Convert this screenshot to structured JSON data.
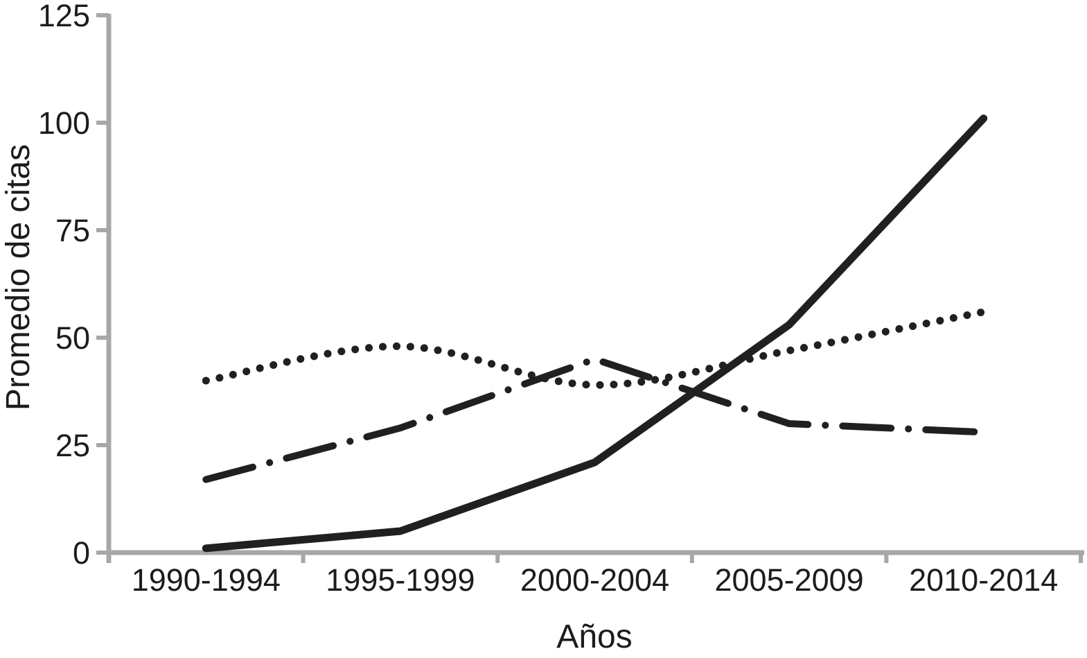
{
  "figure": {
    "background_color": "#ffffff",
    "axis_color": "#a7a7a7",
    "line_color": "#221f1f",
    "text_color": "#1c1c1c"
  },
  "chart_data": {
    "type": "line",
    "title": "",
    "xlabel": "Años",
    "ylabel": "Promedio de citas",
    "categories": [
      "1990-1994",
      "1995-1999",
      "2000-2004",
      "2005-2009",
      "2010-2014"
    ],
    "yticks": [
      0,
      25,
      50,
      75,
      100,
      125
    ],
    "ylim": [
      0,
      125
    ],
    "grid": false,
    "legend_position": "none",
    "series": [
      {
        "name": "solid-line",
        "style": "solid",
        "values": [
          1,
          5,
          21,
          53,
          101
        ]
      },
      {
        "name": "dotted-line",
        "style": "dotted",
        "values": [
          40,
          48,
          39,
          47,
          56
        ]
      },
      {
        "name": "dash-dot-line",
        "style": "dashdot",
        "values": [
          17,
          29,
          45,
          30,
          28
        ]
      }
    ]
  }
}
